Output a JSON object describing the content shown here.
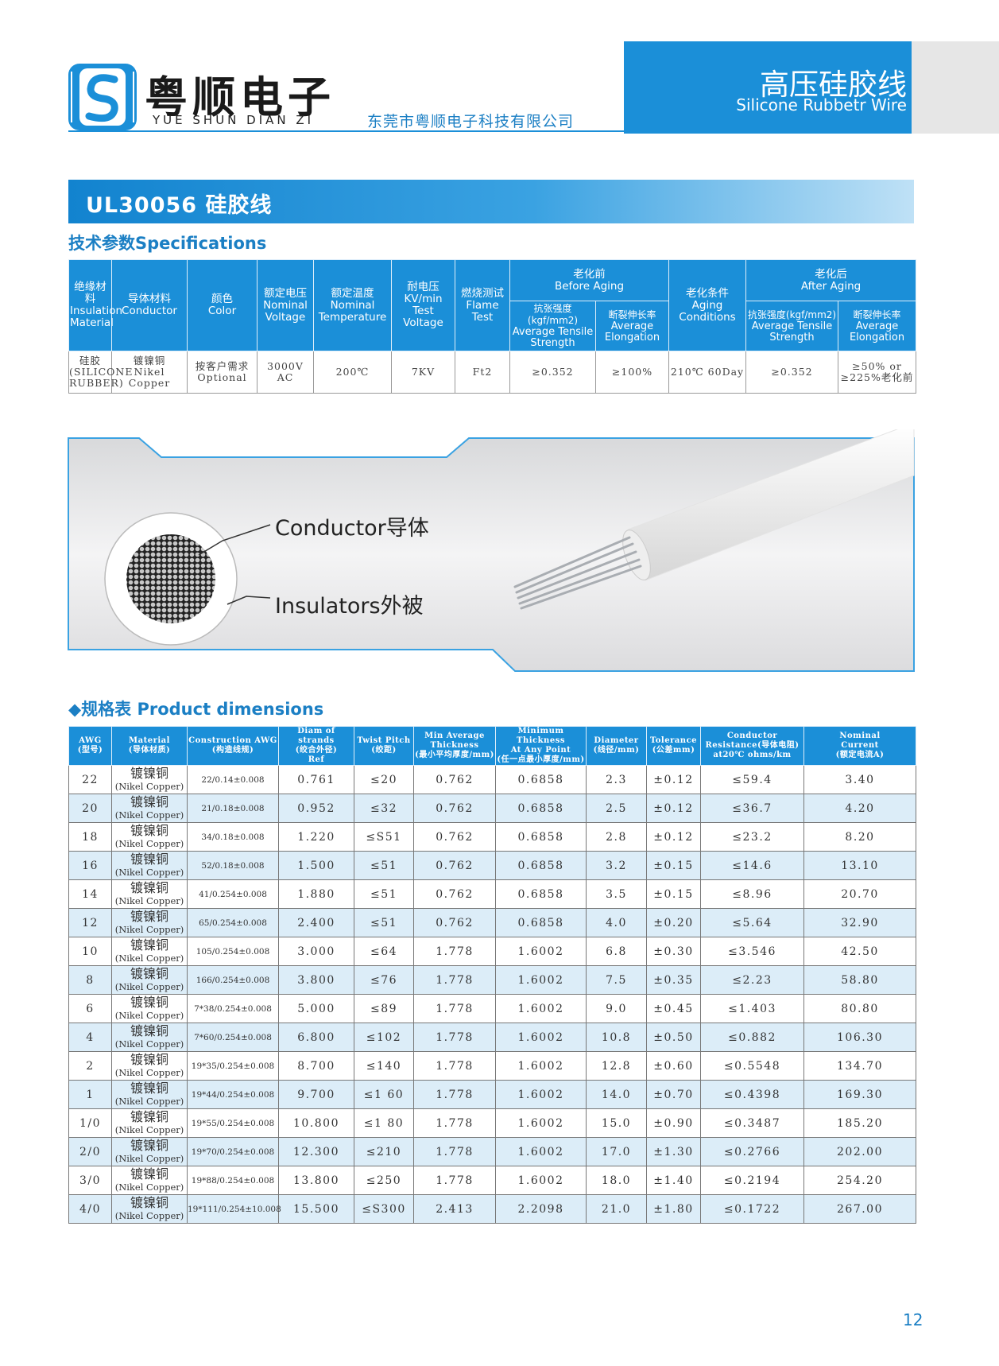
{
  "header": {
    "brand": "粤顺电子",
    "brand_pinyin": "YUE SHUN DIAN ZI",
    "company": "东莞市粤顺电子科技有限公司",
    "product_title": "高压硅胶线",
    "product_subtitle": "Silicone Rubbetr Wire"
  },
  "banner": "UL30056 硅胶线",
  "spec_heading": "技术参数Specifications",
  "spec_table": {
    "columns": [
      [
        "绝缘材料",
        "Insulation",
        "Material"
      ],
      [
        "导体材料",
        "Conductor"
      ],
      [
        "颜色",
        "Color"
      ],
      [
        "额定电压",
        "Nominal",
        "Voltage"
      ],
      [
        "额定温度",
        "Nominal",
        "Temperature"
      ],
      [
        "耐电压",
        "KV/min Test",
        "Voltage"
      ],
      [
        "燃烧测试",
        "Flame",
        "Test"
      ]
    ],
    "before_aging": {
      "title": [
        "老化前",
        "Before Aging"
      ],
      "columns": [
        [
          "抗张强度(kgf/mm2)",
          "Average Tensile",
          "Strength"
        ],
        [
          "断裂伸长率",
          "Average",
          "Elongation"
        ]
      ]
    },
    "aging_conditions": [
      "老化条件",
      "Aging",
      "Conditions"
    ],
    "after_aging": {
      "title": [
        "老化后",
        "After Aging"
      ],
      "columns": [
        [
          "抗张强度(kgf/mm2)",
          "Average Tensile",
          "Strength"
        ],
        [
          "断裂伸长率",
          "Average",
          "Elongation"
        ]
      ]
    },
    "row": [
      [
        "硅胶",
        "(SILICONE",
        "RUBBER)"
      ],
      [
        "镀镍铜",
        "Nikel",
        "Copper"
      ],
      [
        "按客户需求",
        "Optional"
      ],
      "3000V AC",
      "200℃",
      "7KV",
      "Ft2",
      "≥0.352",
      "≥100%",
      "210℃ 60Day",
      "≥0.352",
      [
        "≥50% or",
        "≥225%老化前"
      ]
    ]
  },
  "diagram": {
    "conductor_label": "Conductor导体",
    "insulator_label": "Insulators外被"
  },
  "dims_heading": "◆规格表 Product dimensions",
  "dims_table": {
    "columns": [
      [
        "AWG",
        "(型号)"
      ],
      [
        "Material",
        "(导体材质)"
      ],
      [
        "Construction AWG",
        "(构造线规)"
      ],
      [
        "Diam of strands",
        "(绞合外径)",
        "Ref"
      ],
      [
        "Twist Pitch",
        "(绞距)"
      ],
      [
        "Min Average",
        "Thickness",
        "(最小平均厚度/mm)"
      ],
      [
        "Minimum Thickness",
        "At Any Point",
        "(任一点最小厚度/mm)"
      ],
      [
        "Diameter",
        "(线径/mm)"
      ],
      [
        "Tolerance",
        "(公差mm)"
      ],
      [
        "Conductor",
        "Resistance(导体电阻)",
        "at20℃ ohms/km"
      ],
      [
        "Nominal",
        "Current",
        "(额定电流A)"
      ]
    ],
    "rows": [
      [
        "22",
        [
          "镀镍铜",
          "(Nikel Copper)"
        ],
        "22/0.14±0.008",
        "0.761",
        "≤20",
        "0.762",
        "0.6858",
        "2.3",
        "±0.12",
        "≤59.4",
        "3.40"
      ],
      [
        "20",
        [
          "镀镍铜",
          "(Nikel Copper)"
        ],
        "21/0.18±0.008",
        "0.952",
        "≤32",
        "0.762",
        "0.6858",
        "2.5",
        "±0.12",
        "≤36.7",
        "4.20"
      ],
      [
        "18",
        [
          "镀镍铜",
          "(Nikel Copper)"
        ],
        "34/0.18±0.008",
        "1.220",
        "≤S51",
        "0.762",
        "0.6858",
        "2.8",
        "±0.12",
        "≤23.2",
        "8.20"
      ],
      [
        "16",
        [
          "镀镍铜",
          "(Nikel Copper)"
        ],
        "52/0.18±0.008",
        "1.500",
        "≤51",
        "0.762",
        "0.6858",
        "3.2",
        "±0.15",
        "≤14.6",
        "13.10"
      ],
      [
        "14",
        [
          "镀镍铜",
          "(Nikel Copper)"
        ],
        "41/0.254±0.008",
        "1.880",
        "≤51",
        "0.762",
        "0.6858",
        "3.5",
        "±0.15",
        "≤8.96",
        "20.70"
      ],
      [
        "12",
        [
          "镀镍铜",
          "(Nikel Copper)"
        ],
        "65/0.254±0.008",
        "2.400",
        "≤51",
        "0.762",
        "0.6858",
        "4.0",
        "±0.20",
        "≤5.64",
        "32.90"
      ],
      [
        "10",
        [
          "镀镍铜",
          "(Nikel Copper)"
        ],
        "105/0.254±0.008",
        "3.000",
        "≤64",
        "1.778",
        "1.6002",
        "6.8",
        "±0.30",
        "≤3.546",
        "42.50"
      ],
      [
        "8",
        [
          "镀镍铜",
          "(Nikel Copper)"
        ],
        "166/0.254±0.008",
        "3.800",
        "≤76",
        "1.778",
        "1.6002",
        "7.5",
        "±0.35",
        "≤2.23",
        "58.80"
      ],
      [
        "6",
        [
          "镀镍铜",
          "(Nikel Copper)"
        ],
        "7*38/0.254±0.008",
        "5.000",
        "≤89",
        "1.778",
        "1.6002",
        "9.0",
        "±0.45",
        "≤1.403",
        "80.80"
      ],
      [
        "4",
        [
          "镀镍铜",
          "(Nikel Copper)"
        ],
        "7*60/0.254±0.008",
        "6.800",
        "≤102",
        "1.778",
        "1.6002",
        "10.8",
        "±0.50",
        "≤0.882",
        "106.30"
      ],
      [
        "2",
        [
          "镀镍铜",
          "(Nikel Copper)"
        ],
        "19*35/0.254±0.008",
        "8.700",
        "≤140",
        "1.778",
        "1.6002",
        "12.8",
        "±0.60",
        "≤0.5548",
        "134.70"
      ],
      [
        "1",
        [
          "镀镍铜",
          "(Nikel Copper)"
        ],
        "19*44/0.254±0.008",
        "9.700",
        "≤1 60",
        "1.778",
        "1.6002",
        "14.0",
        "±0.70",
        "≤0.4398",
        "169.30"
      ],
      [
        "1/0",
        [
          "镀镍铜",
          "(Nikel Copper)"
        ],
        "19*55/0.254±0.008",
        "10.800",
        "≤1 80",
        "1.778",
        "1.6002",
        "15.0",
        "±0.90",
        "≤0.3487",
        "185.20"
      ],
      [
        "2/0",
        [
          "镀镍铜",
          "(Nikel Copper)"
        ],
        "19*70/0.254±0.008",
        "12.300",
        "≤210",
        "1.778",
        "1.6002",
        "17.0",
        "±1.30",
        "≤0.2766",
        "202.00"
      ],
      [
        "3/0",
        [
          "镀镍铜",
          "(Nikel Copper)"
        ],
        "19*88/0.254±0.008",
        "13.800",
        "≤250",
        "1.778",
        "1.6002",
        "18.0",
        "±1.40",
        "≤0.2194",
        "254.20"
      ],
      [
        "4/0",
        [
          "镀镍铜",
          "(Nikel Copper)"
        ],
        "19*111/0.254±10.008",
        "15.500",
        "≤S300",
        "2.413",
        "2.2098",
        "21.0",
        "±1.80",
        "≤0.1722",
        "267.00"
      ]
    ]
  },
  "page_number": "12"
}
